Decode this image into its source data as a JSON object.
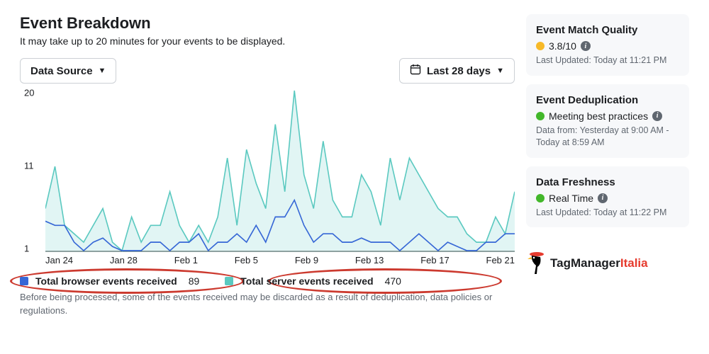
{
  "header": {
    "title": "Event Breakdown",
    "subtitle": "It may take up to 20 minutes for your events to be displayed."
  },
  "controls": {
    "data_source_label": "Data Source",
    "date_range_label": "Last 28 days"
  },
  "chart": {
    "type": "line",
    "ylim": [
      1,
      20
    ],
    "yticks": [
      1,
      11,
      20
    ],
    "xlabels": [
      "Jan 24",
      "Jan 28",
      "Feb 1",
      "Feb 5",
      "Feb 9",
      "Feb 13",
      "Feb 17",
      "Feb 21"
    ],
    "background_color": "#ffffff",
    "axis_color": "#333333",
    "series": [
      {
        "name": "browser",
        "color": "#3667d6",
        "fill_opacity": 0,
        "line_width": 1.7,
        "data": [
          4.5,
          4,
          4,
          2,
          1,
          2,
          2.5,
          1.5,
          1,
          1,
          1,
          2,
          2,
          1,
          2,
          2,
          3,
          1,
          2,
          2,
          3,
          2,
          4,
          2,
          5,
          5,
          7,
          4,
          2,
          3,
          3,
          2,
          2,
          2.5,
          2,
          2,
          2,
          1,
          2,
          3,
          2,
          1,
          2,
          1.5,
          1,
          1,
          2,
          2,
          3,
          3
        ]
      },
      {
        "name": "server",
        "color": "#5bc9c0",
        "fill_opacity": 0.18,
        "line_width": 1.7,
        "data": [
          6,
          11,
          4,
          3,
          2,
          4,
          6,
          2,
          1,
          5,
          2,
          4,
          4,
          8,
          4,
          2,
          4,
          2,
          5,
          12,
          4,
          13,
          9,
          6,
          16,
          8,
          20,
          10,
          6,
          14,
          7,
          5,
          5,
          10,
          8,
          4,
          12,
          7,
          12,
          10,
          8,
          6,
          5,
          5,
          3,
          2,
          2,
          5,
          3,
          8
        ]
      }
    ]
  },
  "legend": {
    "browser_label": "Total browser events received",
    "browser_value": "89",
    "browser_color": "#3667d6",
    "server_label": "Total server events received",
    "server_value": "470",
    "server_color": "#5bc9c0",
    "highlight_color": "#cc3a2f"
  },
  "footer_note": "Before being processed, some of the events received may be discarded as a result of deduplication, data policies or regulations.",
  "cards": {
    "match": {
      "title": "Event Match Quality",
      "score": "3.8/10",
      "dot_color": "#f7b928",
      "meta": "Last Updated: Today at 11:21 PM"
    },
    "dedup": {
      "title": "Event Deduplication",
      "status": "Meeting best practices",
      "dot_color": "#42b72a",
      "meta": "Data from: Yesterday at 9:00 AM - Today at 8:59 AM"
    },
    "fresh": {
      "title": "Data Freshness",
      "status": "Real Time",
      "dot_color": "#42b72a",
      "meta": "Last Updated: Today at 11:22 PM"
    }
  },
  "brand": {
    "text1": "TagManager",
    "text2": "Italia",
    "color2": "#e63b2e"
  }
}
